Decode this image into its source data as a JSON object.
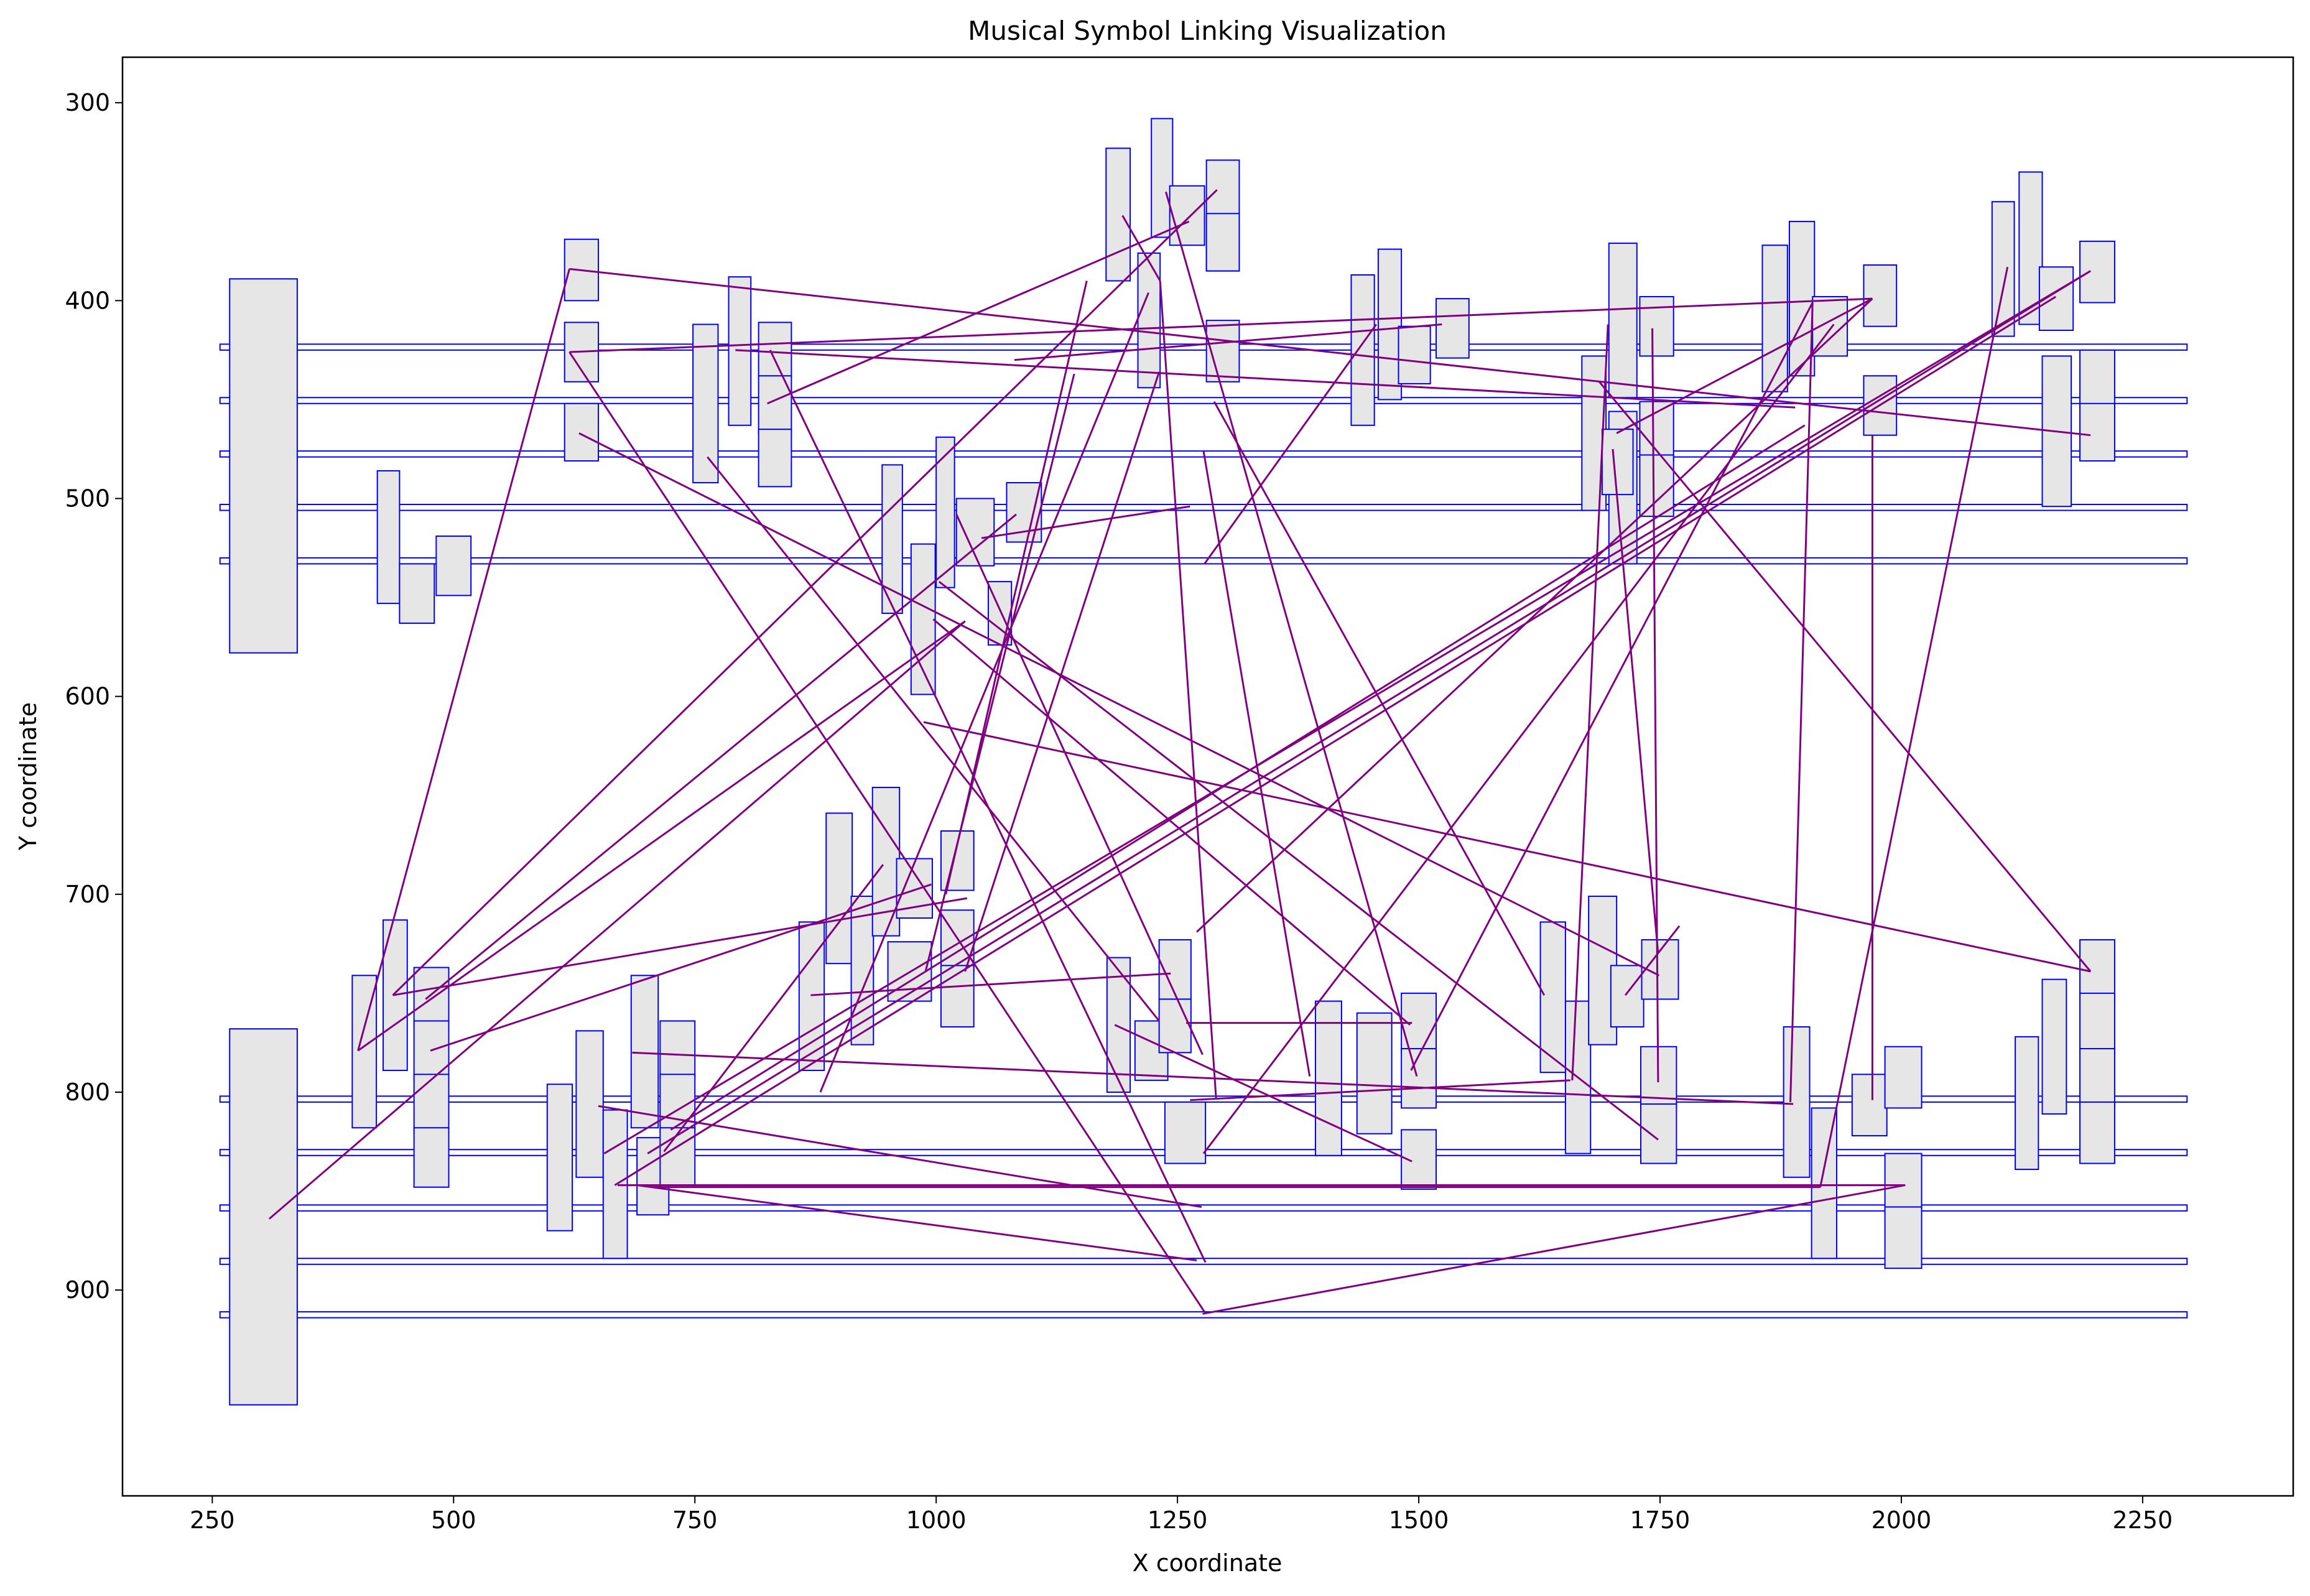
{
  "chart_data": {
    "type": "scatter",
    "title": "Musical Symbol Linking Visualization",
    "xlabel": "X coordinate",
    "ylabel": "Y coordinate",
    "xlim": [
      157,
      2406
    ],
    "ylim": [
      1004,
      277
    ],
    "y_inverted": true,
    "grid": false,
    "xticks": [
      250,
      500,
      750,
      1000,
      1250,
      1500,
      1750,
      2000,
      2250
    ],
    "yticks": [
      300,
      400,
      500,
      600,
      700,
      800,
      900
    ],
    "colors": {
      "box_edge": "#0000ff",
      "box_fill": "#e6e6e6",
      "link": "#800080"
    },
    "staff_lines": [
      [
        258,
        2296,
        422,
        425
      ],
      [
        258,
        2296,
        449,
        452
      ],
      [
        258,
        2296,
        476,
        479
      ],
      [
        258,
        2296,
        503,
        506
      ],
      [
        258,
        2296,
        530,
        533
      ],
      [
        258,
        2296,
        802,
        805
      ],
      [
        258,
        2296,
        829,
        832
      ],
      [
        258,
        2296,
        857,
        860
      ],
      [
        258,
        2296,
        884,
        887
      ],
      [
        258,
        2296,
        911,
        914
      ]
    ],
    "symbols": [
      [
        268,
        338,
        389,
        578
      ],
      [
        268,
        338,
        768,
        958
      ],
      [
        421,
        444,
        486,
        553
      ],
      [
        444,
        480,
        533,
        563
      ],
      [
        482,
        518,
        519,
        549
      ],
      [
        615,
        650,
        369,
        400
      ],
      [
        615,
        650,
        411,
        441
      ],
      [
        615,
        650,
        452,
        481
      ],
      [
        748,
        774,
        412,
        492
      ],
      [
        785,
        808,
        388,
        463
      ],
      [
        816,
        850,
        411,
        439
      ],
      [
        816,
        850,
        438,
        467
      ],
      [
        816,
        850,
        465,
        494
      ],
      [
        944,
        965,
        483,
        558
      ],
      [
        974,
        999,
        523,
        599
      ],
      [
        1000,
        1019,
        469,
        545
      ],
      [
        1021,
        1060,
        500,
        534
      ],
      [
        1054,
        1078,
        542,
        574
      ],
      [
        1073,
        1109,
        492,
        522
      ],
      [
        1176,
        1201,
        323,
        390
      ],
      [
        1209,
        1232,
        376,
        444
      ],
      [
        1223,
        1245,
        308,
        368
      ],
      [
        1242,
        1278,
        342,
        372
      ],
      [
        1280,
        1314,
        329,
        385
      ],
      [
        1280,
        1314,
        356,
        385
      ],
      [
        1280,
        1314,
        410,
        441
      ],
      [
        1430,
        1454,
        387,
        463
      ],
      [
        1458,
        1482,
        374,
        450
      ],
      [
        1479,
        1512,
        413,
        442
      ],
      [
        1518,
        1552,
        399,
        429
      ],
      [
        1669,
        1694,
        428,
        506
      ],
      [
        1697,
        1726,
        371,
        449
      ],
      [
        1697,
        1726,
        456,
        533
      ],
      [
        1690,
        1722,
        465,
        498
      ],
      [
        1729,
        1764,
        398,
        428
      ],
      [
        1729,
        1764,
        451,
        481
      ],
      [
        1729,
        1764,
        478,
        509
      ],
      [
        1856,
        1882,
        372,
        446
      ],
      [
        1884,
        1910,
        360,
        438
      ],
      [
        1908,
        1944,
        398,
        428
      ],
      [
        1961,
        1995,
        382,
        413
      ],
      [
        1961,
        1995,
        438,
        468
      ],
      [
        2094,
        2117,
        350,
        418
      ],
      [
        2122,
        2146,
        335,
        412
      ],
      [
        2143,
        2178,
        383,
        415
      ],
      [
        2146,
        2176,
        428,
        504
      ],
      [
        2185,
        2221,
        370,
        401
      ],
      [
        2185,
        2221,
        425,
        454
      ],
      [
        2185,
        2221,
        452,
        481
      ],
      [
        395,
        420,
        741,
        818
      ],
      [
        427,
        452,
        713,
        789
      ],
      [
        459,
        495,
        737,
        767
      ],
      [
        459,
        495,
        764,
        794
      ],
      [
        459,
        495,
        791,
        821
      ],
      [
        459,
        495,
        818,
        848
      ],
      [
        597,
        623,
        796,
        870
      ],
      [
        627,
        655,
        769,
        843
      ],
      [
        655,
        680,
        809,
        884
      ],
      [
        684,
        712,
        741,
        818
      ],
      [
        690,
        723,
        823,
        862
      ],
      [
        714,
        750,
        764,
        793
      ],
      [
        714,
        750,
        791,
        820
      ],
      [
        714,
        750,
        818,
        848
      ],
      [
        858,
        884,
        714,
        789
      ],
      [
        886,
        913,
        659,
        735
      ],
      [
        912,
        935,
        701,
        776
      ],
      [
        934,
        962,
        646,
        721
      ],
      [
        959,
        996,
        682,
        712
      ],
      [
        950,
        995,
        724,
        754
      ],
      [
        1005,
        1039,
        668,
        698
      ],
      [
        1005,
        1039,
        708,
        739
      ],
      [
        1005,
        1039,
        736,
        767
      ],
      [
        1177,
        1201,
        732,
        800
      ],
      [
        1206,
        1240,
        764,
        794
      ],
      [
        1231,
        1264,
        723,
        753
      ],
      [
        1231,
        1264,
        753,
        780
      ],
      [
        1237,
        1279,
        805,
        836
      ],
      [
        1393,
        1420,
        754,
        832
      ],
      [
        1436,
        1472,
        760,
        821
      ],
      [
        1482,
        1518,
        750,
        780
      ],
      [
        1482,
        1518,
        778,
        808
      ],
      [
        1482,
        1518,
        819,
        849
      ],
      [
        1626,
        1652,
        714,
        790
      ],
      [
        1652,
        1678,
        754,
        831
      ],
      [
        1676,
        1705,
        701,
        776
      ],
      [
        1699,
        1733,
        736,
        767
      ],
      [
        1731,
        1769,
        723,
        753
      ],
      [
        1730,
        1767,
        777,
        808
      ],
      [
        1730,
        1767,
        806,
        836
      ],
      [
        1878,
        1905,
        767,
        843
      ],
      [
        1907,
        1933,
        808,
        884
      ],
      [
        1949,
        1985,
        791,
        822
      ],
      [
        1983,
        2021,
        777,
        808
      ],
      [
        1983,
        2021,
        831,
        862
      ],
      [
        1983,
        2021,
        858,
        889
      ],
      [
        2118,
        2142,
        772,
        839
      ],
      [
        2146,
        2171,
        743,
        811
      ],
      [
        2185,
        2221,
        723,
        754
      ],
      [
        2185,
        2221,
        750,
        781
      ],
      [
        2185,
        2221,
        778,
        808
      ],
      [
        2185,
        2221,
        805,
        836
      ]
    ],
    "links": [
      [
        620,
        384,
        2196,
        468
      ],
      [
        620,
        426,
        1278,
        911
      ],
      [
        620,
        426,
        1970,
        399
      ],
      [
        630,
        467,
        1749,
        741
      ],
      [
        401,
        779,
        620,
        384
      ],
      [
        437,
        751,
        1291,
        344
      ],
      [
        401,
        779,
        1030,
        562
      ],
      [
        471,
        753,
        1083,
        508
      ],
      [
        437,
        751,
        1032,
        702
      ],
      [
        476,
        779,
        995,
        695
      ],
      [
        825,
        452,
        1262,
        360
      ],
      [
        828,
        425,
        1279,
        886
      ],
      [
        763,
        479,
        1231,
        764
      ],
      [
        792,
        425,
        1890,
        454
      ],
      [
        309,
        864,
        1030,
        562
      ],
      [
        1021,
        508,
        1276,
        781
      ],
      [
        1047,
        520,
        1263,
        504
      ],
      [
        997,
        561,
        1491,
        766
      ],
      [
        1003,
        542,
        1748,
        824
      ],
      [
        1238,
        345,
        1498,
        792
      ],
      [
        1193,
        357,
        1232,
        390
      ],
      [
        1232,
        390,
        1290,
        803
      ],
      [
        1288,
        451,
        1630,
        751
      ],
      [
        1277,
        476,
        1387,
        792
      ],
      [
        1278,
        533,
        1456,
        412
      ],
      [
        1524,
        412,
        1081,
        430
      ],
      [
        1492,
        789,
        1908,
        401
      ],
      [
        1277,
        831,
        1930,
        412
      ],
      [
        1696,
        412,
        1659,
        794
      ],
      [
        1701,
        475,
        1748,
        730
      ],
      [
        1742,
        414,
        1748,
        795
      ],
      [
        1714,
        751,
        1770,
        716
      ],
      [
        1705,
        467,
        1970,
        399
      ],
      [
        1885,
        805,
        1908,
        401
      ],
      [
        1970,
        399,
        1270,
        719
      ],
      [
        1970,
        468,
        1970,
        804
      ],
      [
        2196,
        385,
        656,
        831
      ],
      [
        2196,
        385,
        701,
        831
      ],
      [
        2160,
        398,
        667,
        847
      ],
      [
        2110,
        383,
        1916,
        848
      ],
      [
        2196,
        739,
        987,
        613
      ],
      [
        2196,
        739,
        1687,
        441
      ],
      [
        1030,
        739,
        1231,
        436
      ],
      [
        989,
        739,
        1143,
        437
      ],
      [
        870,
        751,
        1243,
        740
      ],
      [
        1185,
        766,
        1493,
        835
      ],
      [
        1259,
        765,
        1493,
        765
      ],
      [
        1263,
        804,
        1657,
        794
      ],
      [
        650,
        807,
        1275,
        858
      ],
      [
        685,
        780,
        1888,
        806
      ],
      [
        706,
        848,
        1916,
        848
      ],
      [
        670,
        847,
        2004,
        847
      ],
      [
        690,
        847,
        1270,
        885
      ],
      [
        1276,
        912,
        2004,
        847
      ],
      [
        725,
        819,
        1900,
        463
      ],
      [
        880,
        800,
        1220,
        396
      ],
      [
        1010,
        700,
        1156,
        390
      ],
      [
        718,
        830,
        945,
        685
      ]
    ]
  }
}
